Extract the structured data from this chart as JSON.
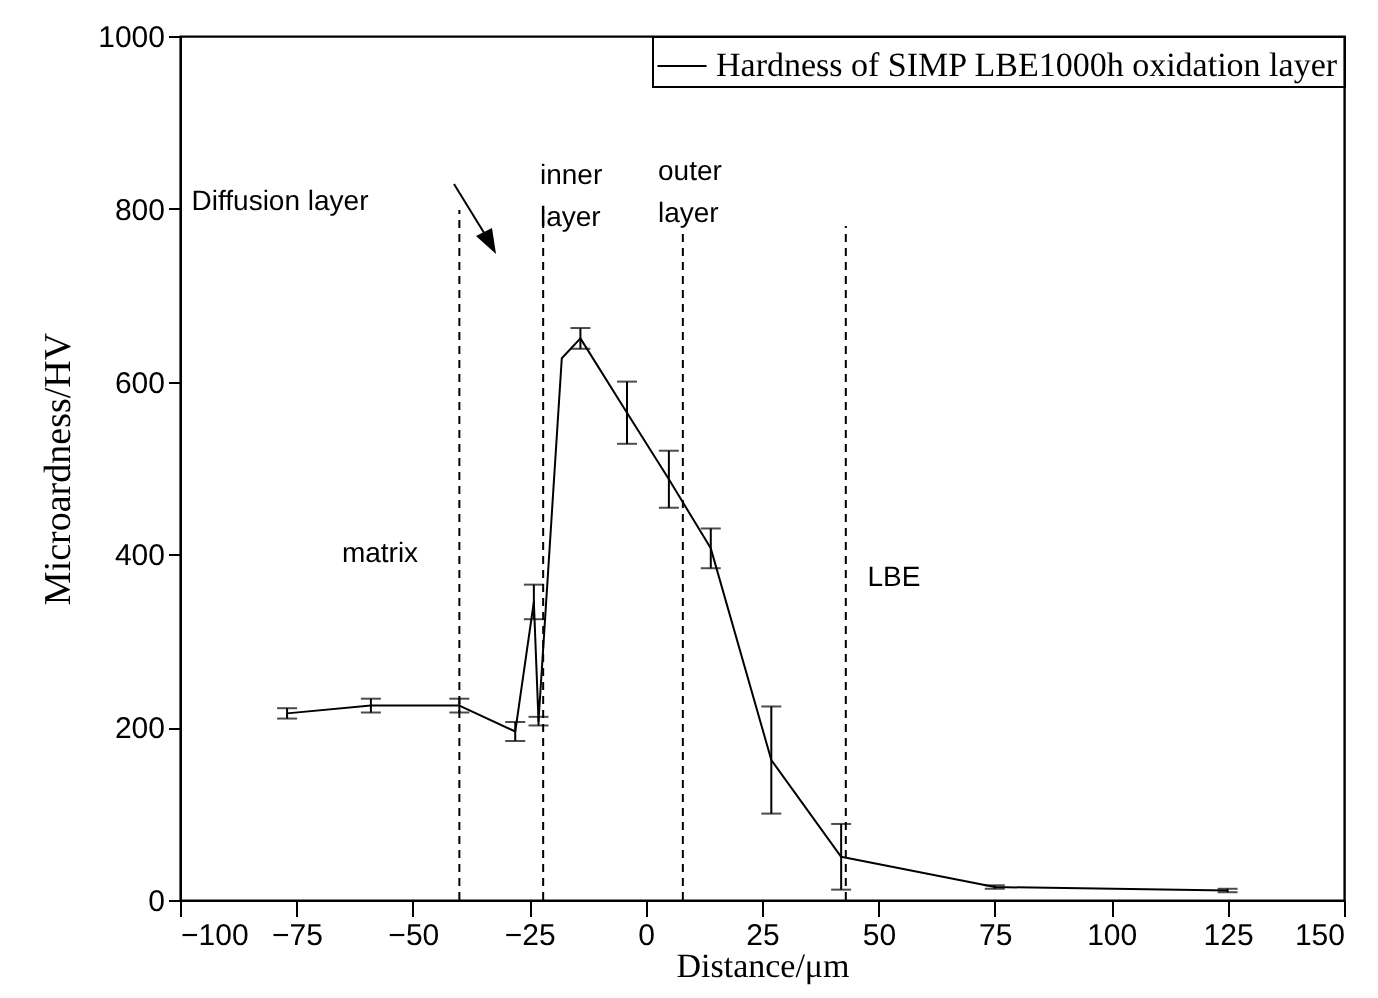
{
  "chart_data": {
    "type": "line",
    "xlabel": "Distance/μm",
    "ylabel": "Microardness/HV",
    "xlim": [
      -100,
      150
    ],
    "xticks": [
      -100,
      -75,
      -50,
      -25,
      0,
      25,
      50,
      75,
      100,
      125,
      150
    ],
    "ylim": [
      0,
      1000
    ],
    "yticks": [
      0,
      200,
      400,
      600,
      800,
      1000
    ],
    "x": [
      -77,
      -59,
      -40,
      -28,
      -24,
      -23,
      -18,
      -14,
      -4,
      5,
      14,
      27,
      42,
      75,
      125
    ],
    "series": [
      {
        "name": "Hardness of SIMP LBE1000h oxidation layer",
        "color": "#000000",
        "values": [
          216,
          225,
          225,
          195,
          345,
          207,
          627,
          650,
          564,
          487,
          407,
          162,
          50,
          15,
          11
        ],
        "errors": [
          6,
          8,
          8,
          11,
          20,
          5,
          null,
          12,
          36,
          33,
          23,
          62,
          38,
          2,
          2
        ]
      }
    ],
    "ref_lines": [
      {
        "axis": "x",
        "value": -40,
        "color": "#000000",
        "line_style": "dashed"
      },
      {
        "axis": "x",
        "value": -22,
        "color": "#000000",
        "line_style": "dashed"
      },
      {
        "axis": "x",
        "value": 8,
        "color": "#000000",
        "line_style": "dashed"
      },
      {
        "axis": "x",
        "value": 43,
        "color": "#000000",
        "line_style": "dashed"
      }
    ],
    "annotations": [
      "Diffusion layer",
      "inner\nlayer",
      "outer\nlayer",
      "matrix",
      "LBE"
    ],
    "legend": "top right",
    "marker": "none",
    "line_style": "solid",
    "grid": false
  }
}
